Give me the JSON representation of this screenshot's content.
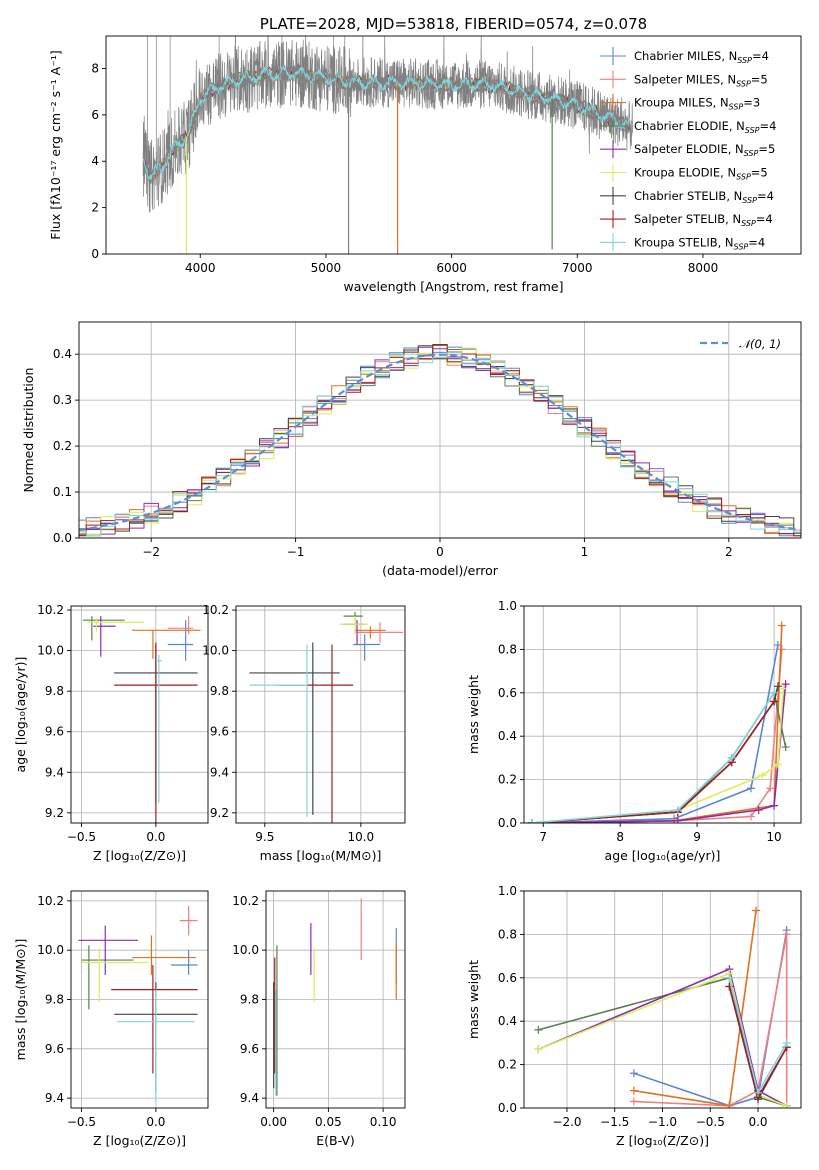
{
  "colors": {
    "chabrier_miles": "#5b84d6",
    "salpeter_miles": "#f08080",
    "kroupa_miles": "#e2701e",
    "chabrier_elodie": "#5b7f55",
    "salpeter_elodie": "#8e2bb0",
    "kroupa_elodie": "#d8ee5a",
    "chabrier_stelib": "#444444",
    "salpeter_stelib": "#a41f1f",
    "kroupa_stelib": "#7fd6de",
    "data_gray": "#808080",
    "gaussian": "#5b8ed6"
  },
  "chart_data": [
    {
      "id": "spectrum",
      "type": "line",
      "title": "PLATE=2028, MJD=53818, FIBERID=0574, z=0.078",
      "xlabel": "wavelength [Angstrom, rest frame]",
      "ylabel": "Flux [fλ10⁻¹⁷ erg cm⁻² s⁻¹ A⁻¹]",
      "xlim": [
        3250,
        8780
      ],
      "ylim": [
        0,
        9.4
      ],
      "xticks": [
        "4000",
        "5000",
        "6000",
        "7000",
        "8000"
      ],
      "yticks": [
        "0",
        "2",
        "4",
        "6",
        "8"
      ],
      "legend_position": "upper right",
      "legend": [
        {
          "label": "Chabrier MILES, N",
          "sub": "SSP",
          "tail": "=4",
          "color_key": "chabrier_miles"
        },
        {
          "label": "Salpeter MILES, N",
          "sub": "SSP",
          "tail": "=5",
          "color_key": "salpeter_miles"
        },
        {
          "label": "Kroupa MILES, N",
          "sub": "SSP",
          "tail": "=3",
          "color_key": "kroupa_miles"
        },
        {
          "label": "Chabrier ELODIE, N",
          "sub": "SSP",
          "tail": "=4",
          "color_key": "chabrier_elodie"
        },
        {
          "label": "Salpeter ELODIE, N",
          "sub": "SSP",
          "tail": "=5",
          "color_key": "salpeter_elodie"
        },
        {
          "label": "Kroupa ELODIE, N",
          "sub": "SSP",
          "tail": "=5",
          "color_key": "kroupa_elodie"
        },
        {
          "label": "Chabrier STELIB, N",
          "sub": "SSP",
          "tail": "=4",
          "color_key": "chabrier_stelib"
        },
        {
          "label": "Salpeter STELIB, N",
          "sub": "SSP",
          "tail": "=4",
          "color_key": "salpeter_stelib"
        },
        {
          "label": "Kroupa STELIB, N",
          "sub": "SSP",
          "tail": "=4",
          "color_key": "kroupa_stelib"
        }
      ],
      "continuum": [
        [
          3540,
          4.2
        ],
        [
          3600,
          3.3
        ],
        [
          3700,
          3.8
        ],
        [
          3800,
          4.6
        ],
        [
          3900,
          5.1
        ],
        [
          3950,
          5.9
        ],
        [
          4000,
          6.7
        ],
        [
          4100,
          7.1
        ],
        [
          4200,
          7.3
        ],
        [
          4300,
          7.5
        ],
        [
          4500,
          7.7
        ],
        [
          4700,
          7.8
        ],
        [
          5000,
          7.6
        ],
        [
          5200,
          7.4
        ],
        [
          5500,
          7.4
        ],
        [
          6000,
          7.3
        ],
        [
          6300,
          7.3
        ],
        [
          6600,
          6.9
        ],
        [
          6800,
          6.7
        ],
        [
          7000,
          6.4
        ],
        [
          7200,
          6.0
        ],
        [
          7400,
          5.5
        ]
      ],
      "absorption_dips": [
        [
          3890,
          0.0
        ],
        [
          5180,
          0.0
        ],
        [
          5570,
          0.0
        ],
        [
          6800,
          0.2
        ]
      ]
    },
    {
      "id": "residuals",
      "type": "step",
      "xlabel": "(data-model)/error",
      "ylabel": "Normed distribution",
      "xlim": [
        -2.5,
        2.5
      ],
      "ylim": [
        0,
        0.47
      ],
      "xticks": [
        "−2",
        "−1",
        "0",
        "1",
        "2"
      ],
      "yticks": [
        "0.0",
        "0.1",
        "0.2",
        "0.3",
        "0.4"
      ],
      "grid": true,
      "legend": [
        {
          "label": "𝒩(0, 1)",
          "color_key": "gaussian",
          "style": "dashed"
        }
      ],
      "legend_position": "upper right",
      "bin_width": 0.1
    },
    {
      "id": "age_vs_Z",
      "type": "errorbar",
      "xlabel": "Z [log₁₀(Z/Z⊙)]",
      "ylabel": "age  [log₁₀(age/yr)]",
      "xlim": [
        -0.57,
        0.35
      ],
      "ylim": [
        9.15,
        10.22
      ],
      "xticks": [
        "−0.5",
        "0.0"
      ],
      "yticks": [
        "9.2",
        "9.4",
        "9.6",
        "9.8",
        "10.0",
        "10.2"
      ],
      "grid": true,
      "points": [
        {
          "key": "chabrier_miles",
          "x": 0.2,
          "xerr": [
            0.12,
            0.05
          ],
          "y": 10.03,
          "yerr": [
            0.08,
            0.12
          ]
        },
        {
          "key": "salpeter_miles",
          "x": 0.22,
          "xerr": [
            0.14,
            0.03
          ],
          "y": 10.11,
          "yerr": [
            0.03,
            0.06
          ]
        },
        {
          "key": "kroupa_miles",
          "x": -0.02,
          "xerr": [
            0.14,
            0.32
          ],
          "y": 10.1,
          "yerr": [
            0.14,
            0.0
          ]
        },
        {
          "key": "chabrier_elodie",
          "x": -0.43,
          "xerr": [
            0.06,
            0.22
          ],
          "y": 10.15,
          "yerr": [
            0.1,
            0.02
          ]
        },
        {
          "key": "salpeter_elodie",
          "x": -0.37,
          "xerr": [
            0.05,
            0.1
          ],
          "y": 10.12,
          "yerr": [
            0.15,
            0.05
          ]
        },
        {
          "key": "kroupa_elodie",
          "x": -0.4,
          "xerr": [
            0.06,
            0.32
          ],
          "y": 10.14,
          "yerr": [
            0.05,
            0.02
          ]
        },
        {
          "key": "chabrier_stelib",
          "x": 0.0,
          "xerr": [
            0.28,
            0.28
          ],
          "y": 9.89,
          "yerr": [
            0.64,
            0.15
          ]
        },
        {
          "key": "salpeter_stelib",
          "x": 0.0,
          "xerr": [
            0.28,
            0.28
          ],
          "y": 9.83,
          "yerr": [
            0.8,
            0.2
          ]
        },
        {
          "key": "kroupa_stelib",
          "x": 0.02,
          "xerr": [
            0.02,
            0.02
          ],
          "y": 9.95,
          "yerr": [
            0.7,
            0.03
          ]
        }
      ]
    },
    {
      "id": "age_vs_mass",
      "type": "errorbar",
      "xlabel": "mass [log₁₀(M/M⊙)]",
      "xlim": [
        9.35,
        10.23
      ],
      "ylim": [
        9.15,
        10.22
      ],
      "xticks": [
        "9.5",
        "10.0"
      ],
      "yticks": [
        "9.2",
        "9.4",
        "9.6",
        "9.8",
        "10.0",
        "10.2"
      ],
      "grid": true,
      "points": [
        {
          "key": "chabrier_miles",
          "x": 10.02,
          "xerr": [
            0.06,
            0.08
          ],
          "y": 10.03,
          "yerr": [
            0.08,
            0.05
          ]
        },
        {
          "key": "salpeter_miles",
          "x": 10.1,
          "xerr": [
            0.12,
            0.12
          ],
          "y": 10.09,
          "yerr": [
            0.05,
            0.05
          ]
        },
        {
          "key": "kroupa_miles",
          "x": 10.05,
          "xerr": [
            0.08,
            0.08
          ],
          "y": 10.1,
          "yerr": [
            0.04,
            0.02
          ]
        },
        {
          "key": "chabrier_elodie",
          "x": 9.97,
          "xerr": [
            0.06,
            0.04
          ],
          "y": 10.17,
          "yerr": [
            0.04,
            0.02
          ]
        },
        {
          "key": "salpeter_elodie",
          "x": 9.98,
          "xerr": [
            0.07,
            0.04
          ],
          "y": 10.13,
          "yerr": [
            0.1,
            0.02
          ]
        },
        {
          "key": "kroupa_elodie",
          "x": 9.97,
          "xerr": [
            0.08,
            0.07
          ],
          "y": 10.13,
          "yerr": [
            0.05,
            0.04
          ]
        },
        {
          "key": "chabrier_stelib",
          "x": 9.75,
          "xerr": [
            0.33,
            0.14
          ],
          "y": 9.89,
          "yerr": [
            0.7,
            0.15
          ]
        },
        {
          "key": "salpeter_stelib",
          "x": 9.85,
          "xerr": [
            0.28,
            0.11
          ],
          "y": 9.83,
          "yerr": [
            0.8,
            0.2
          ]
        },
        {
          "key": "kroupa_stelib",
          "x": 9.72,
          "xerr": [
            0.3,
            0.0
          ],
          "y": 9.83,
          "yerr": [
            0.65,
            0.2
          ]
        }
      ]
    },
    {
      "id": "mass_weight_vs_age",
      "type": "line",
      "xlabel": "age  [log₁₀(age/yr)]",
      "ylabel": "mass weight",
      "xlim": [
        6.75,
        10.35
      ],
      "ylim": [
        0,
        1
      ],
      "xticks": [
        "7",
        "8",
        "9",
        "10"
      ],
      "yticks": [
        "0.0",
        "0.2",
        "0.4",
        "0.6",
        "0.8",
        "1.0"
      ],
      "grid": true,
      "series": [
        {
          "key": "chabrier_miles",
          "x": [
            6.85,
            8.7,
            9.7,
            10.05
          ],
          "y": [
            0.0,
            0.02,
            0.16,
            0.82
          ]
        },
        {
          "key": "salpeter_miles",
          "x": [
            6.85,
            8.7,
            9.7,
            9.95,
            10.1
          ],
          "y": [
            0.0,
            0.01,
            0.03,
            0.16,
            0.8
          ]
        },
        {
          "key": "kroupa_miles",
          "x": [
            6.85,
            8.7,
            10.0,
            10.1
          ],
          "y": [
            0.0,
            0.01,
            0.08,
            0.91
          ]
        },
        {
          "key": "chabrier_elodie",
          "x": [
            6.85,
            8.75,
            9.45,
            10.0,
            10.15
          ],
          "y": [
            0.0,
            0.05,
            0.3,
            0.6,
            0.35
          ]
        },
        {
          "key": "salpeter_elodie",
          "x": [
            6.85,
            8.75,
            9.8,
            10.0,
            10.15
          ],
          "y": [
            0.0,
            0.01,
            0.06,
            0.08,
            0.64
          ]
        },
        {
          "key": "kroupa_elodie",
          "x": [
            6.85,
            8.75,
            9.85,
            10.05,
            10.12
          ],
          "y": [
            0.0,
            0.06,
            0.22,
            0.27,
            0.62
          ]
        },
        {
          "key": "chabrier_stelib",
          "x": [
            6.85,
            8.75,
            9.45,
            10.0,
            10.05
          ],
          "y": [
            0.0,
            0.05,
            0.28,
            0.56,
            0.63
          ]
        },
        {
          "key": "salpeter_stelib",
          "x": [
            6.85,
            8.75,
            9.45,
            10.0
          ],
          "y": [
            0.0,
            0.05,
            0.28,
            0.56
          ]
        },
        {
          "key": "kroupa_stelib",
          "x": [
            6.85,
            8.75,
            9.45,
            10.0
          ],
          "y": [
            0.0,
            0.06,
            0.3,
            0.6
          ]
        }
      ]
    },
    {
      "id": "mass_vs_Z",
      "type": "errorbar",
      "xlabel": "Z [log₁₀(Z/Z⊙)]",
      "ylabel": "mass [log₁₀(M/M⊙)]",
      "xlim": [
        -0.57,
        0.35
      ],
      "ylim": [
        9.36,
        10.24
      ],
      "xticks": [
        "−0.5",
        "0.0"
      ],
      "yticks": [
        "9.4",
        "9.6",
        "9.8",
        "10.0",
        "10.2"
      ],
      "grid": true,
      "points": [
        {
          "key": "chabrier_miles",
          "x": 0.22,
          "xerr": [
            0.12,
            0.06
          ],
          "y": 9.94,
          "yerr": [
            0.04,
            0.06
          ]
        },
        {
          "key": "salpeter_miles",
          "x": 0.22,
          "xerr": [
            0.06,
            0.06
          ],
          "y": 10.12,
          "yerr": [
            0.06,
            0.06
          ]
        },
        {
          "key": "kroupa_miles",
          "x": -0.03,
          "xerr": [
            0.13,
            0.3
          ],
          "y": 9.97,
          "yerr": [
            0.07,
            0.09
          ]
        },
        {
          "key": "chabrier_elodie",
          "x": -0.45,
          "xerr": [
            0.05,
            0.3
          ],
          "y": 9.96,
          "yerr": [
            0.2,
            0.06
          ]
        },
        {
          "key": "salpeter_elodie",
          "x": -0.34,
          "xerr": [
            0.18,
            0.22
          ],
          "y": 10.04,
          "yerr": [
            0.14,
            0.06
          ]
        },
        {
          "key": "kroupa_elodie",
          "x": -0.38,
          "xerr": [
            0.12,
            0.33
          ],
          "y": 9.95,
          "yerr": [
            0.16,
            0.06
          ]
        },
        {
          "key": "chabrier_stelib",
          "x": 0.0,
          "xerr": [
            0.28,
            0.28
          ],
          "y": 9.74,
          "yerr": [
            0.32,
            0.13
          ]
        },
        {
          "key": "salpeter_stelib",
          "x": -0.02,
          "xerr": [
            0.28,
            0.3
          ],
          "y": 9.84,
          "yerr": [
            0.34,
            0.1
          ]
        },
        {
          "key": "kroupa_stelib",
          "x": 0.0,
          "xerr": [
            0.26,
            0.26
          ],
          "y": 9.71,
          "yerr": [
            0.32,
            0.13
          ]
        }
      ]
    },
    {
      "id": "mass_vs_ebv",
      "type": "errorbar",
      "xlabel": "E(B-V)",
      "xlim": [
        -0.007,
        0.12
      ],
      "ylim": [
        9.36,
        10.24
      ],
      "xticks": [
        "0.00",
        "0.05",
        "0.10"
      ],
      "yticks": [
        "9.4",
        "9.6",
        "9.8",
        "10.0",
        "10.2"
      ],
      "grid": true,
      "points": [
        {
          "key": "chabrier_miles",
          "x": 0.112,
          "y": 9.94,
          "yerr": [
            0.08,
            0.15
          ]
        },
        {
          "key": "salpeter_miles",
          "x": 0.08,
          "y": 10.12,
          "yerr": [
            0.16,
            0.09
          ]
        },
        {
          "key": "kroupa_miles",
          "x": 0.112,
          "y": 9.97,
          "yerr": [
            0.17,
            0.06
          ]
        },
        {
          "key": "chabrier_elodie",
          "x": 0.003,
          "y": 9.96,
          "yerr": [
            0.55,
            0.06
          ]
        },
        {
          "key": "salpeter_elodie",
          "x": 0.034,
          "y": 10.04,
          "yerr": [
            0.14,
            0.07
          ]
        },
        {
          "key": "kroupa_elodie",
          "x": 0.037,
          "y": 9.95,
          "yerr": [
            0.16,
            0.06
          ]
        },
        {
          "key": "chabrier_stelib",
          "x": 0.0,
          "y": 9.74,
          "yerr": [
            0.3,
            0.13
          ]
        },
        {
          "key": "salpeter_stelib",
          "x": 0.001,
          "y": 9.84,
          "yerr": [
            0.34,
            0.13
          ]
        },
        {
          "key": "kroupa_stelib",
          "x": 0.002,
          "y": 9.71,
          "yerr": [
            0.3,
            0.13
          ]
        }
      ]
    },
    {
      "id": "mass_weight_vs_Z",
      "type": "line",
      "xlabel": "Z [log₁₀(Z/Z⊙)]",
      "ylabel": "mass weight",
      "xlim": [
        -2.45,
        0.45
      ],
      "ylim": [
        0,
        1
      ],
      "xticks": [
        "−2.0",
        "−1.5",
        "−1.0",
        "−0.5",
        "0.0"
      ],
      "yticks": [
        "0.0",
        "0.2",
        "0.4",
        "0.6",
        "0.8",
        "1.0"
      ],
      "grid": true,
      "series": [
        {
          "key": "chabrier_miles",
          "x": [
            -1.3,
            -0.3,
            0.0,
            0.3
          ],
          "y": [
            0.16,
            0.01,
            0.05,
            0.82
          ]
        },
        {
          "key": "salpeter_miles",
          "x": [
            -1.3,
            -0.3,
            0.0,
            0.3,
            0.3
          ],
          "y": [
            0.03,
            0.01,
            0.08,
            0.8,
            0.01
          ]
        },
        {
          "key": "kroupa_miles",
          "x": [
            -1.3,
            -0.3,
            -0.02
          ],
          "y": [
            0.08,
            0.01,
            0.91
          ]
        },
        {
          "key": "chabrier_elodie",
          "x": [
            -2.3,
            -0.3,
            0.0,
            0.3
          ],
          "y": [
            0.36,
            0.6,
            0.05,
            0.01
          ]
        },
        {
          "key": "salpeter_elodie",
          "x": [
            -2.3,
            -0.3,
            0.0,
            0.3
          ],
          "y": [
            0.27,
            0.64,
            0.08,
            0.01
          ]
        },
        {
          "key": "kroupa_elodie",
          "x": [
            -2.3,
            -0.3,
            0.0,
            0.3
          ],
          "y": [
            0.27,
            0.62,
            0.06,
            0.01
          ]
        },
        {
          "key": "chabrier_stelib",
          "x": [
            -0.3,
            0.0,
            0.3
          ],
          "y": [
            0.56,
            0.04,
            0.28
          ]
        },
        {
          "key": "salpeter_stelib",
          "x": [
            -0.3,
            0.0,
            0.3
          ],
          "y": [
            0.56,
            0.05,
            0.28
          ]
        },
        {
          "key": "kroupa_stelib",
          "x": [
            -0.3,
            0.0,
            0.3
          ],
          "y": [
            0.6,
            0.07,
            0.3
          ]
        }
      ]
    }
  ]
}
